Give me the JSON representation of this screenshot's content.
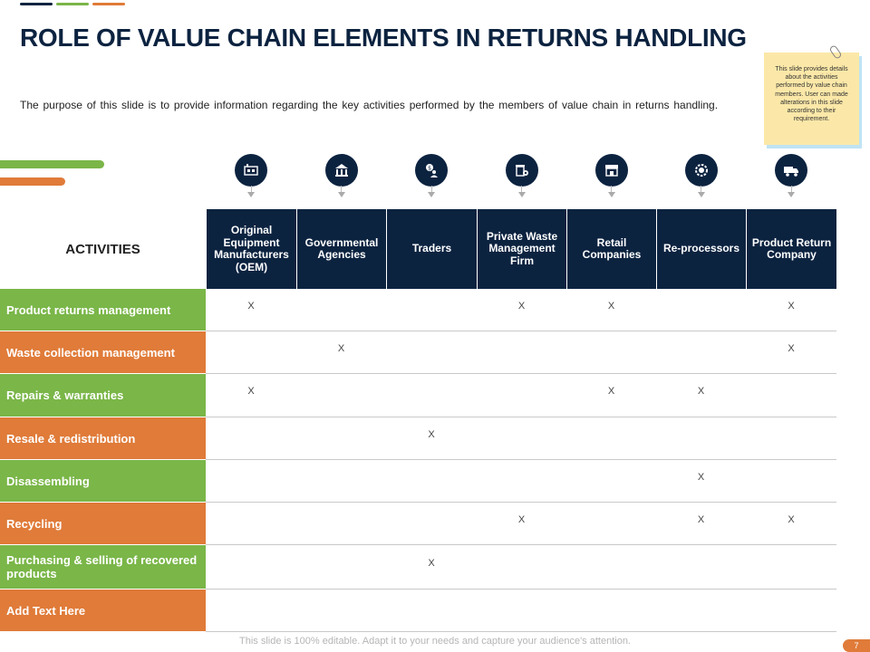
{
  "header": {
    "title": "ROLE OF VALUE CHAIN ELEMENTS IN RETURNS HANDLING",
    "subtitle": "The purpose of this slide is to provide information regarding the key activities performed by the members of value chain in returns handling."
  },
  "note": {
    "text": "This slide provides details about the activities performed by value chain members. User can made alterations in this slide according to their requirement."
  },
  "table": {
    "activities_label": "ACTIVITIES",
    "columns": [
      {
        "label": "Original Equipment Manufacturers (OEM)",
        "icon": "factory-machine-icon"
      },
      {
        "label": "Governmental Agencies",
        "icon": "government-building-icon"
      },
      {
        "label": "Traders",
        "icon": "trader-dollar-icon"
      },
      {
        "label": "Private Waste Management Firm",
        "icon": "waste-bin-gear-icon"
      },
      {
        "label": "Retail Companies",
        "icon": "retail-store-icon"
      },
      {
        "label": "Re-processors",
        "icon": "gear-icon"
      },
      {
        "label": "Product Return Company",
        "icon": "delivery-truck-icon"
      }
    ],
    "rows": [
      {
        "label": "Product returns management",
        "marks": [
          "X",
          "",
          "",
          "X",
          "X",
          "",
          "X"
        ]
      },
      {
        "label": "Waste collection management",
        "marks": [
          "",
          "X",
          "",
          "",
          "",
          "",
          "X"
        ]
      },
      {
        "label": "Repairs & warranties",
        "marks": [
          "X",
          "",
          "",
          "",
          "X",
          "X",
          ""
        ]
      },
      {
        "label": "Resale & redistribution",
        "marks": [
          "",
          "",
          "X",
          "",
          "",
          "",
          ""
        ]
      },
      {
        "label": "Disassembling",
        "marks": [
          "",
          "",
          "",
          "",
          "",
          "X",
          ""
        ]
      },
      {
        "label": "Recycling",
        "marks": [
          "",
          "",
          "",
          "X",
          "",
          "X",
          "X"
        ]
      },
      {
        "label": "Purchasing & selling of recovered products",
        "marks": [
          "",
          "",
          "X",
          "",
          "",
          "",
          ""
        ]
      },
      {
        "label": "Add Text Here",
        "marks": [
          "",
          "",
          "",
          "",
          "",
          "",
          ""
        ]
      }
    ]
  },
  "colors": {
    "navy": "#0c2340",
    "green": "#7ab648",
    "orange": "#e07b39"
  },
  "footer": {
    "text": "This slide is 100% editable. Adapt it to your needs and capture your audience's attention.",
    "page_number": "7"
  }
}
